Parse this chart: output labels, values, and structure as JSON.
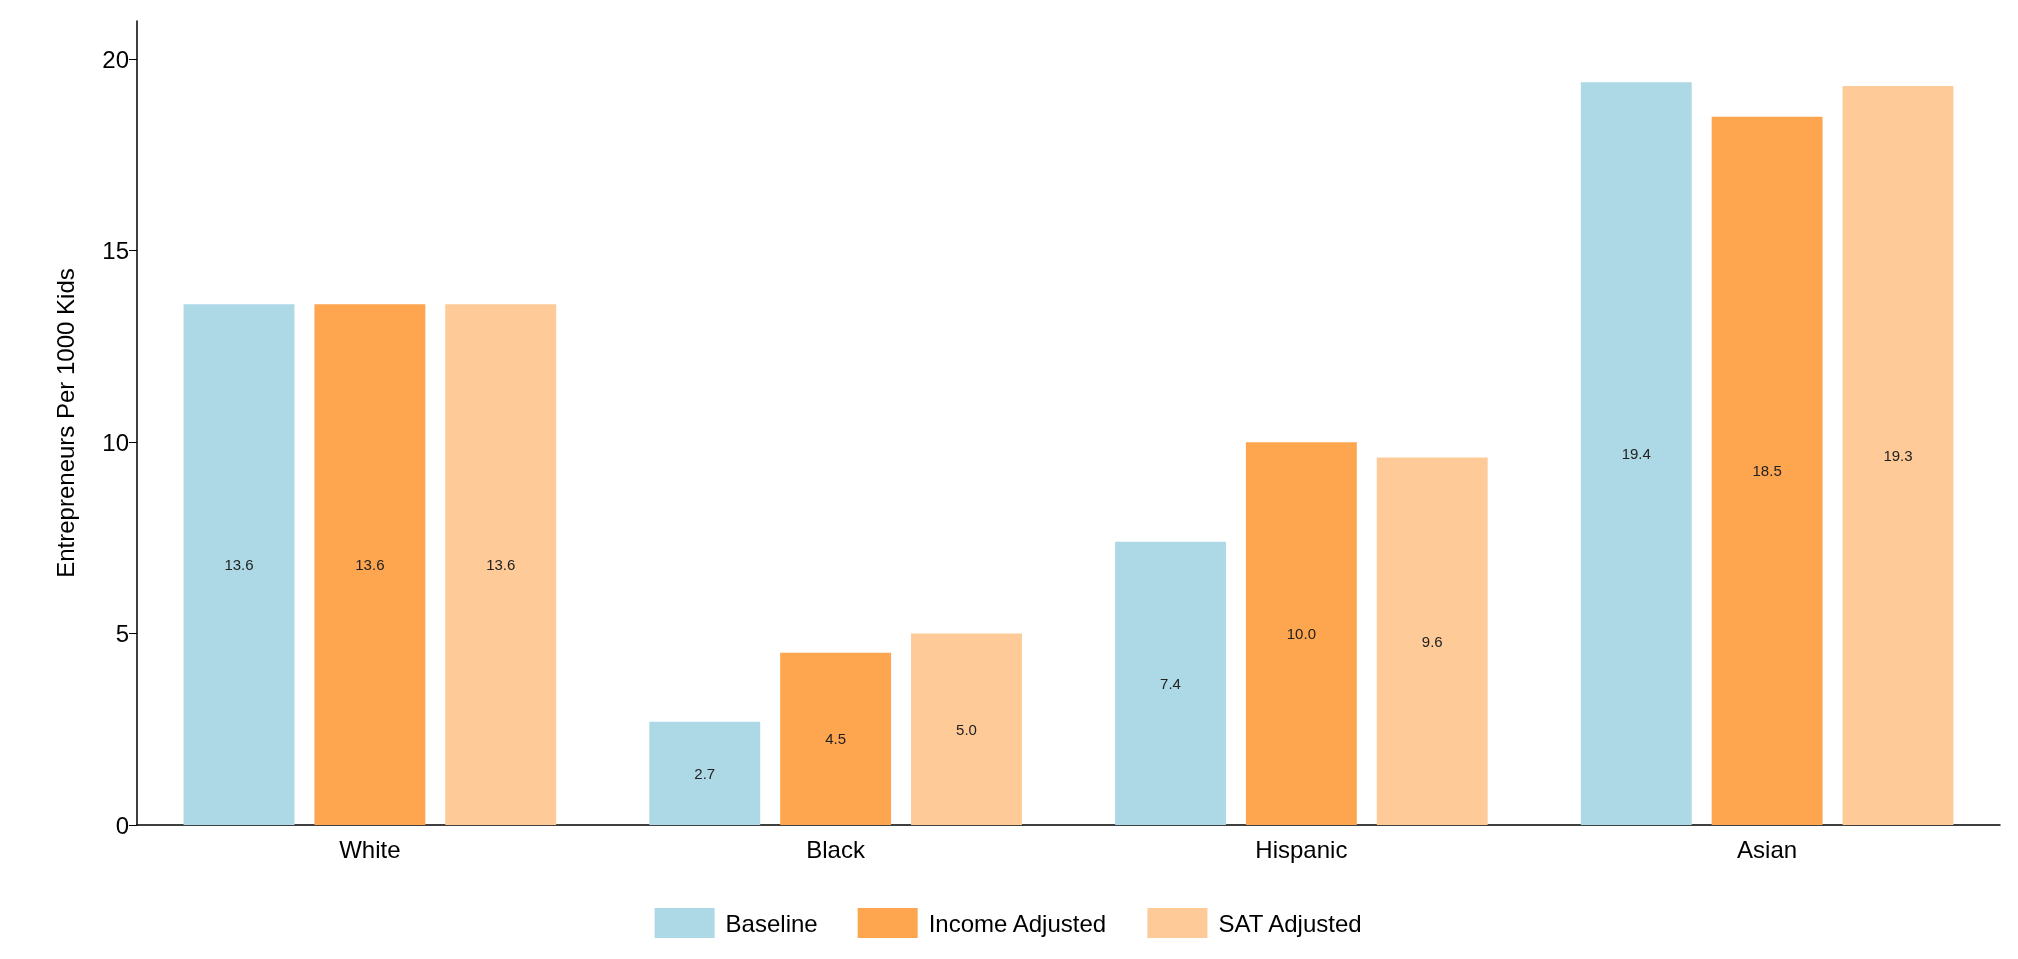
{
  "chart_data": {
    "type": "bar",
    "ylabel": "Entrepreneurs Per 1000 Kids",
    "categories": [
      "White",
      "Black",
      "Hispanic",
      "Asian"
    ],
    "series": [
      {
        "name": "Baseline",
        "color": "#add8e6",
        "values": [
          13.6,
          2.7,
          7.4,
          19.4
        ],
        "value_labels": [
          "13.6",
          "2.7",
          "7.4",
          "19.4"
        ]
      },
      {
        "name": "Income Adjusted",
        "color": "#fea54f",
        "values": [
          13.6,
          4.5,
          10.0,
          18.5
        ],
        "value_labels": [
          "13.6",
          "4.5",
          "10.0",
          "18.5"
        ]
      },
      {
        "name": "SAT Adjusted",
        "color": "#fdca98",
        "values": [
          13.6,
          5.0,
          9.6,
          19.3
        ],
        "value_labels": [
          "13.6",
          "5.0",
          "9.6",
          "19.3"
        ]
      }
    ],
    "ylim": [
      0,
      21
    ],
    "yticks": [
      0,
      5,
      10,
      15,
      20
    ],
    "grid": false,
    "legend": "bottom"
  }
}
